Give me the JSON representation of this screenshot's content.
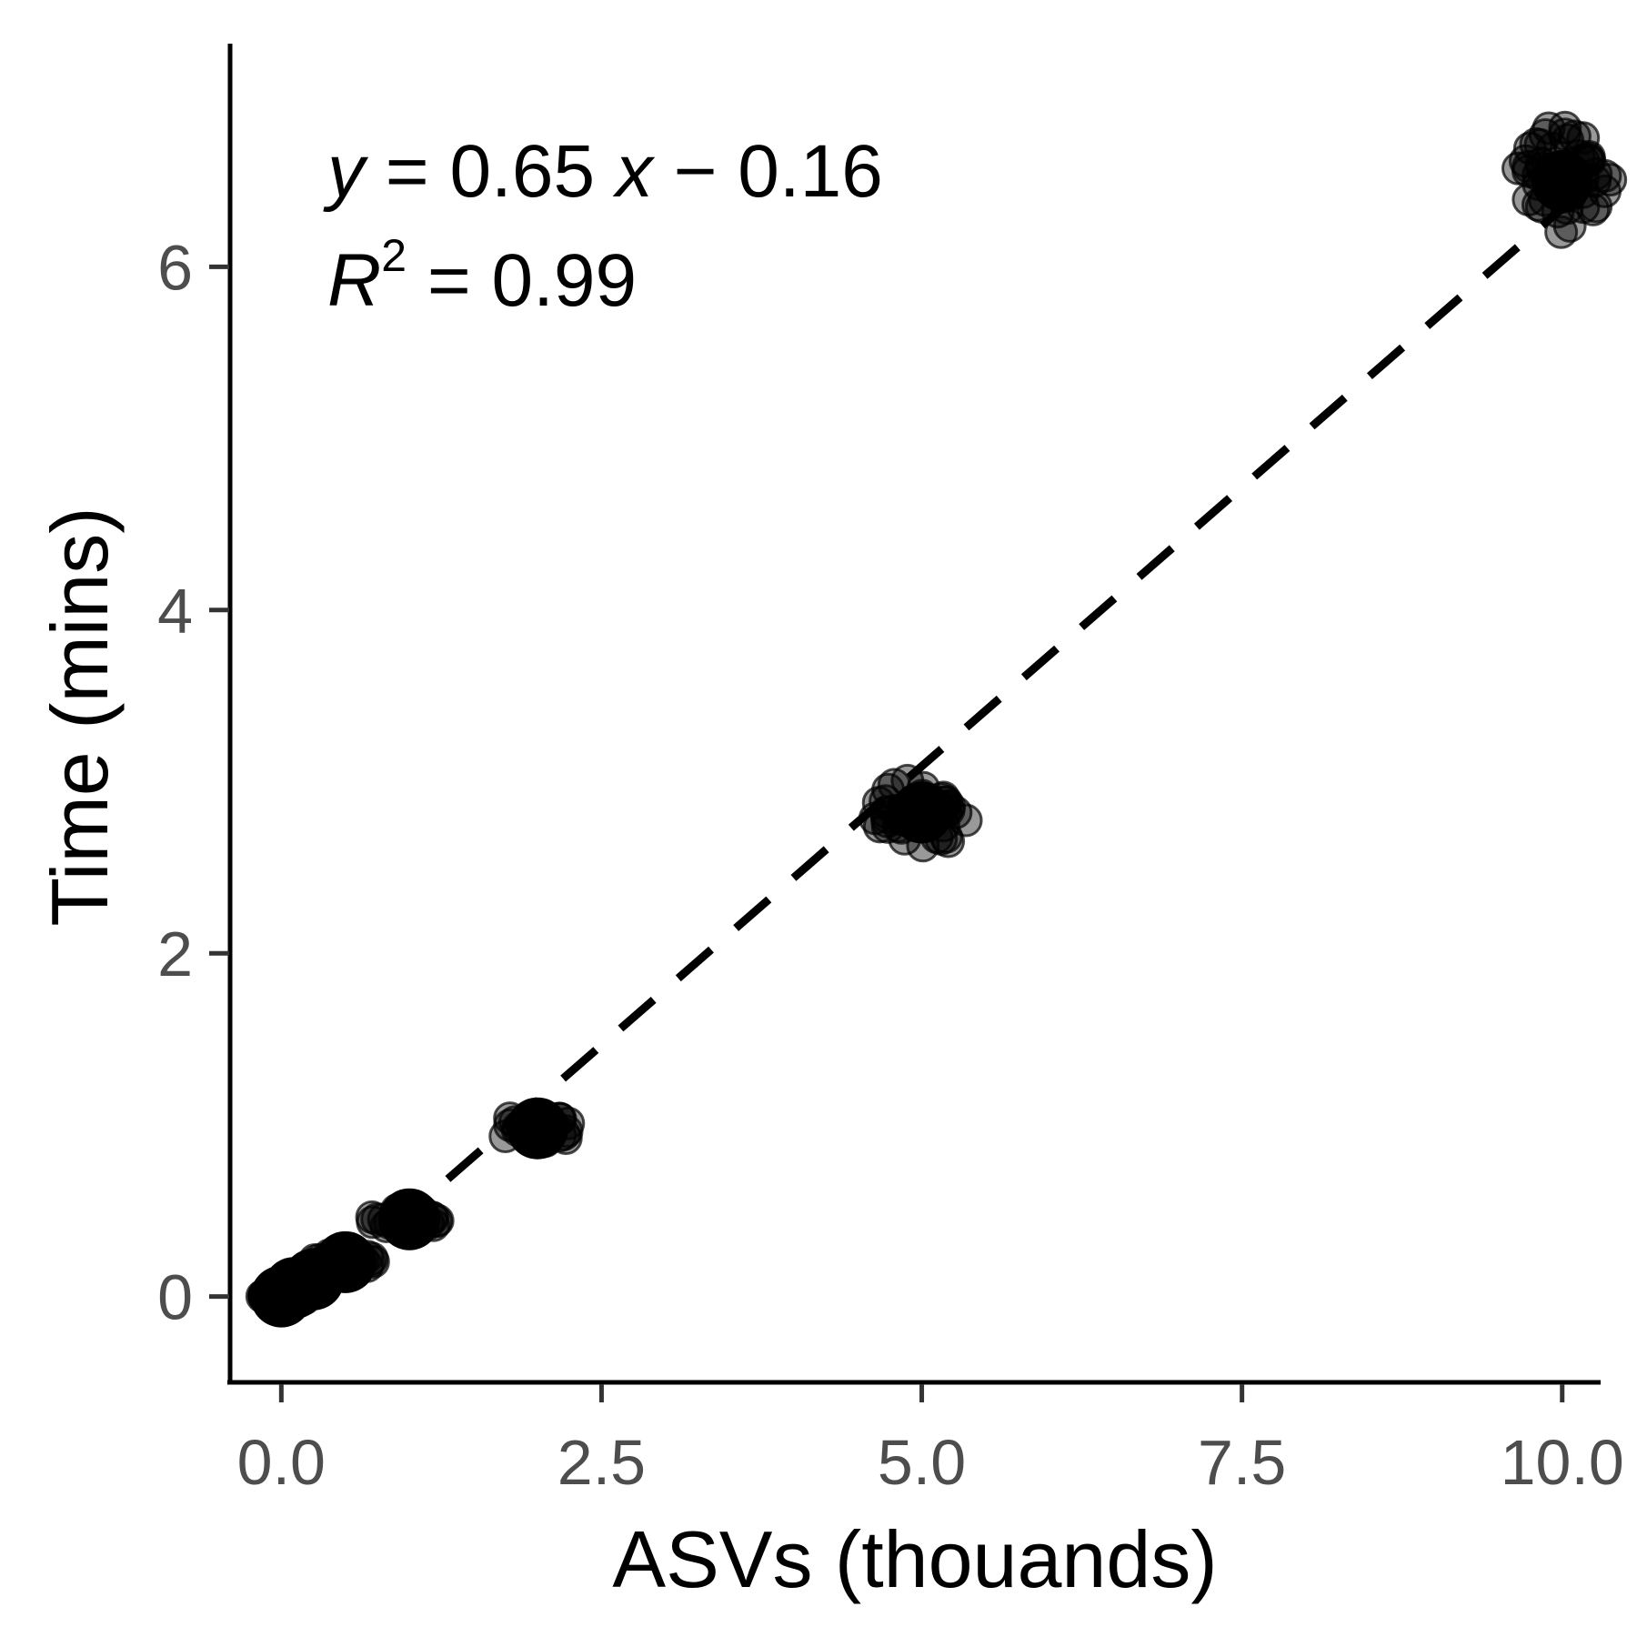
{
  "chart_data": {
    "type": "scatter",
    "xlabel": "ASVs (thouands)",
    "ylabel": "Time (mins)",
    "xlim": [
      -0.4,
      10.3
    ],
    "ylim": [
      -0.5,
      7.3
    ],
    "x_ticks": [
      "0.0",
      "2.5",
      "5.0",
      "7.5",
      "10.0"
    ],
    "y_ticks": [
      "0",
      "2",
      "4",
      "6"
    ],
    "grid": false,
    "legend": "none",
    "point_color": "#000000",
    "point_opacity": 0.4,
    "fit_line": {
      "slope": 0.65,
      "intercept": -0.16,
      "style": "dashed",
      "x_range": [
        1.3,
        10.0
      ]
    },
    "annotation": {
      "equation": {
        "y": "y",
        "eq": " = 0.65 ",
        "x": "x",
        "rest": " − 0.16"
      },
      "r2": {
        "r": "R",
        "sup": "2",
        "rest": " = 0.99"
      }
    },
    "clusters": [
      {
        "x": 0.0,
        "y": 0.0,
        "spread_x": 0.2,
        "spread_y": 0.03,
        "n": 20
      },
      {
        "x": 0.1,
        "y": 0.05,
        "spread_x": 0.2,
        "spread_y": 0.03,
        "n": 20
      },
      {
        "x": 0.25,
        "y": 0.1,
        "spread_x": 0.2,
        "spread_y": 0.04,
        "n": 20
      },
      {
        "x": 0.5,
        "y": 0.2,
        "spread_x": 0.25,
        "spread_y": 0.05,
        "n": 25
      },
      {
        "x": 1.0,
        "y": 0.45,
        "spread_x": 0.3,
        "spread_y": 0.06,
        "n": 25
      },
      {
        "x": 2.0,
        "y": 0.98,
        "spread_x": 0.3,
        "spread_y": 0.09,
        "n": 30
      },
      {
        "x": 5.0,
        "y": 2.82,
        "spread_x": 0.38,
        "spread_y": 0.2,
        "n": 45
      },
      {
        "x": 10.0,
        "y": 6.5,
        "spread_x": 0.38,
        "spread_y": 0.32,
        "n": 50
      }
    ]
  }
}
